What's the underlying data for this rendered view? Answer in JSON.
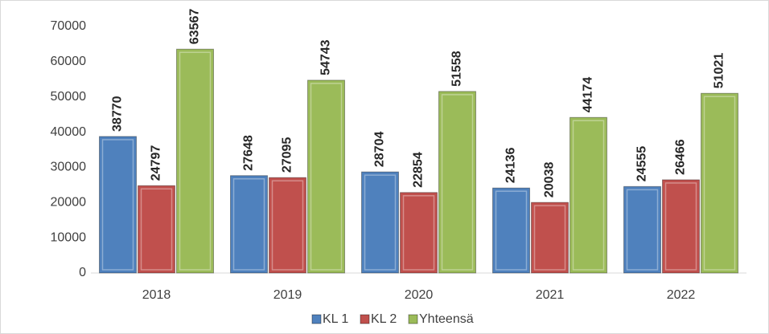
{
  "chart_data": {
    "type": "bar",
    "categories": [
      "2018",
      "2019",
      "2020",
      "2021",
      "2022"
    ],
    "series": [
      {
        "name": "KL 1",
        "color": "#4f81bd",
        "values": [
          38770,
          27648,
          28704,
          24136,
          24555
        ]
      },
      {
        "name": "KL 2",
        "color": "#c0504d",
        "values": [
          24797,
          27095,
          22854,
          20038,
          26466
        ]
      },
      {
        "name": "Yhteensä",
        "color": "#9bbb59",
        "values": [
          63567,
          54743,
          51558,
          44174,
          51021
        ]
      }
    ],
    "ylim": [
      0,
      70000
    ],
    "yticks": [
      0,
      10000,
      20000,
      30000,
      40000,
      50000,
      60000,
      70000
    ],
    "grid": false,
    "legend": "bottom"
  }
}
